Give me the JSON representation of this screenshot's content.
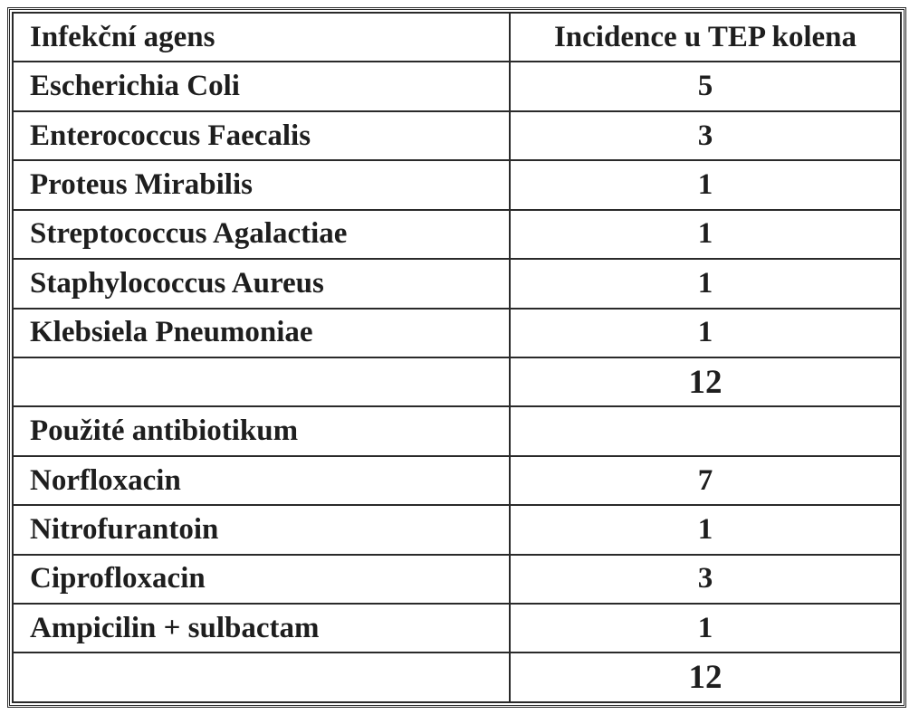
{
  "table": {
    "header": {
      "col1": "Infekční agens",
      "col2": "Incidence u TEP kolena"
    },
    "agents": [
      {
        "name": "Escherichia Coli",
        "value": "5"
      },
      {
        "name": "Enterococcus Faecalis",
        "value": "3"
      },
      {
        "name": "Proteus Mirabilis",
        "value": "1"
      },
      {
        "name": "Streptococcus Agalactiae",
        "value": "1"
      },
      {
        "name": "Staphylococcus Aureus",
        "value": "1"
      },
      {
        "name": "Klebsiela Pneumoniae",
        "value": "1"
      }
    ],
    "agents_total": "12",
    "antibiotics_section": "Použité antibiotikum",
    "antibiotics": [
      {
        "name": "Norfloxacin",
        "value": "7"
      },
      {
        "name": "Nitrofurantoin",
        "value": "1"
      },
      {
        "name": "Ciprofloxacin",
        "value": "3"
      },
      {
        "name": "Ampicilin + sulbactam",
        "value": "1"
      }
    ],
    "antibiotics_total": "12"
  }
}
